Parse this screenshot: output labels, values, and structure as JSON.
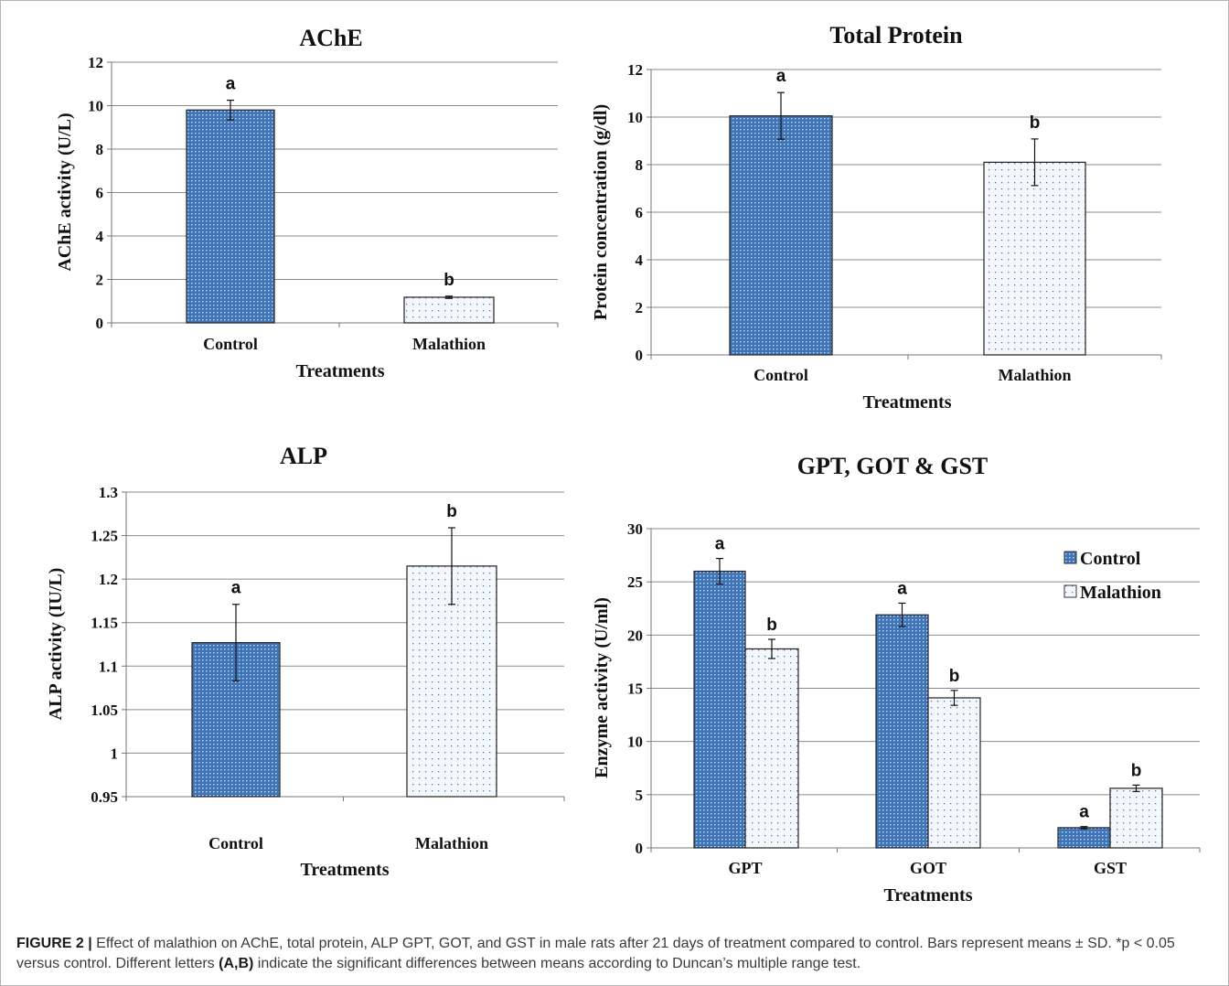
{
  "caption": {
    "label": "FIGURE 2 |",
    "text_before": " Effect of malathion on AChE, total protein, ALP GPT, GOT, and GST in male rats after 21 days of treatment compared to control. Bars represent means ± SD. *p < 0.05 versus control. Different letters ",
    "bold_letters": "(A,B)",
    "text_after": " indicate the significant differences between means according to Duncan’s multiple range test."
  },
  "colors": {
    "control_fill": "#3f74b9",
    "control_dot": "#cfe0f5",
    "malathion_fill": "#f4f8fc",
    "malathion_dot": "#4a7bbd",
    "grid": "#8a8a8a",
    "axis": "#777777"
  },
  "chart_data": [
    {
      "type": "bar",
      "title": "AChE",
      "xlabel": "Treatments",
      "ylabel": "AChE activity (U/L)",
      "ylim": [
        0,
        12
      ],
      "yticks": [
        "0",
        "2",
        "4",
        "6",
        "8",
        "10",
        "12"
      ],
      "categories": [
        "Control",
        "Malathion"
      ],
      "values": [
        9.8,
        1.18
      ],
      "errors": [
        0.45,
        0.05
      ],
      "letters": [
        "a",
        "b"
      ],
      "styles": [
        "control",
        "malathion"
      ],
      "grid": true
    },
    {
      "type": "bar",
      "title": "Total Protein",
      "xlabel": "Treatments",
      "ylabel": "Protein concentration (g/dl)",
      "ylim": [
        0,
        12
      ],
      "yticks": [
        "0",
        "2",
        "4",
        "6",
        "8",
        "10",
        "12"
      ],
      "categories": [
        "Control",
        "Malathion"
      ],
      "values": [
        10.05,
        8.1
      ],
      "errors": [
        0.98,
        0.98
      ],
      "letters": [
        "a",
        "b"
      ],
      "styles": [
        "control",
        "malathion"
      ],
      "grid": true
    },
    {
      "type": "bar",
      "title": "ALP",
      "xlabel": "Treatments",
      "ylabel": "ALP activity (IU/L)",
      "ylim": [
        0.95,
        1.3
      ],
      "yticks": [
        "0.95",
        "1",
        "1.05",
        "1.1",
        "1.15",
        "1.2",
        "1.25",
        "1.3"
      ],
      "categories": [
        "Control",
        "Malathion"
      ],
      "values": [
        1.127,
        1.215
      ],
      "errors": [
        0.044,
        0.044
      ],
      "letters": [
        "a",
        "b"
      ],
      "styles": [
        "control",
        "malathion"
      ],
      "grid": true
    },
    {
      "type": "bar",
      "title": "GPT, GOT & GST",
      "xlabel": "Treatments",
      "ylabel": "Enzyme activity (U/ml)",
      "ylim": [
        0,
        30
      ],
      "yticks": [
        "0",
        "5",
        "10",
        "15",
        "20",
        "25",
        "30"
      ],
      "categories": [
        "GPT",
        "GOT",
        "GST"
      ],
      "series": [
        {
          "name": "Control",
          "values": [
            26.0,
            21.9,
            1.9
          ],
          "errors": [
            1.2,
            1.1,
            0.1
          ],
          "letters": [
            "a",
            "a",
            "a"
          ]
        },
        {
          "name": "Malathion",
          "values": [
            18.7,
            14.1,
            5.6
          ],
          "errors": [
            0.9,
            0.7,
            0.3
          ],
          "letters": [
            "b",
            "b",
            "b"
          ]
        }
      ],
      "legend": "top-right",
      "grid": true
    }
  ]
}
